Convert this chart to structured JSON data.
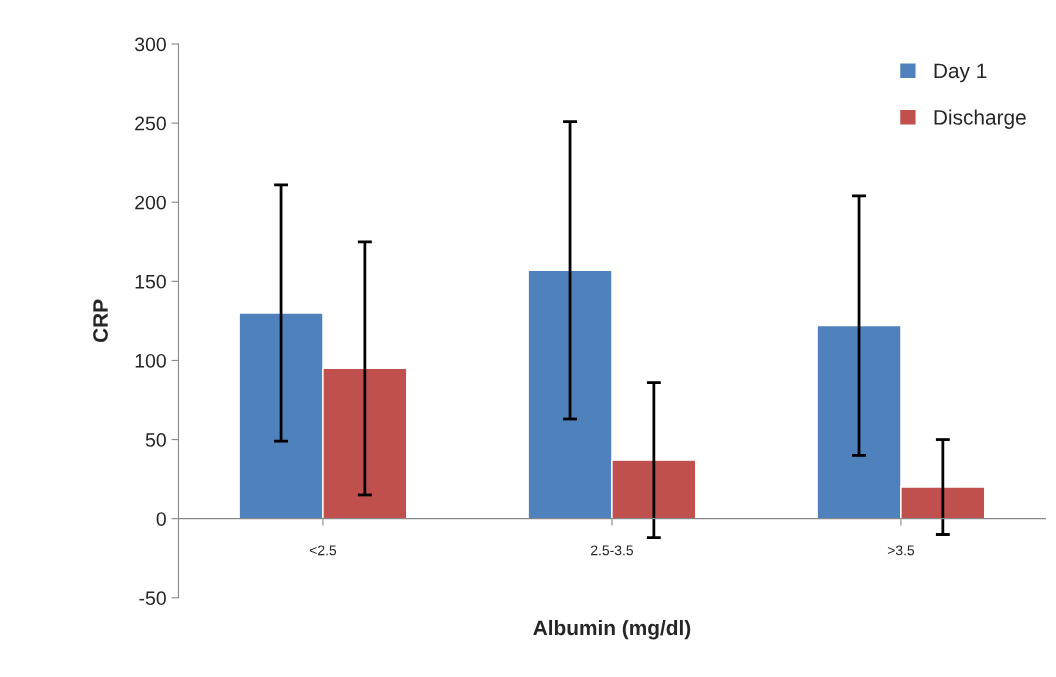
{
  "chart_data": {
    "type": "bar",
    "xlabel": "Albumin (mg/dl)",
    "ylabel": "CRP",
    "categories": [
      "<2.5",
      "2.5-3.5",
      ">3.5"
    ],
    "series": [
      {
        "name": "Day 1",
        "color": "#4f81bd",
        "values": [
          130,
          157,
          122
        ],
        "errors": [
          81,
          94,
          82
        ]
      },
      {
        "name": "Discharge",
        "color": "#c0504d",
        "values": [
          95,
          37,
          20
        ],
        "errors": [
          80,
          49,
          30
        ]
      }
    ],
    "ylim": [
      -50,
      300
    ],
    "yticks": [
      -50,
      0,
      50,
      100,
      150,
      200,
      250,
      300
    ],
    "grid": false,
    "legend": "top right"
  }
}
